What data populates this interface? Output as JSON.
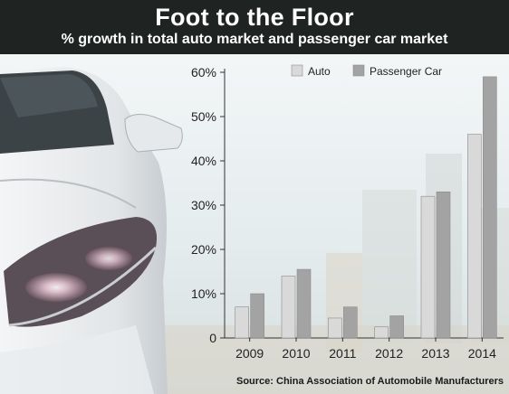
{
  "header": {
    "title": "Foot to the Floor",
    "subtitle": "% growth in total auto market and passenger car market"
  },
  "source": "Source: China Association of Automobile Manufacturers",
  "colors": {
    "auto": "#d9d9d9",
    "passenger_car": "#a3a3a3",
    "header_bg": "#1f2422"
  },
  "chart_data": {
    "type": "bar",
    "categories": [
      "2009",
      "2010",
      "2011",
      "2012",
      "2013",
      "2014"
    ],
    "series": [
      {
        "name": "Auto",
        "values": [
          7,
          14,
          4.5,
          2.5,
          32,
          46
        ]
      },
      {
        "name": "Passenger Car",
        "values": [
          10,
          15.5,
          7,
          5,
          33,
          59
        ]
      }
    ],
    "y_ticks": [
      "0",
      "10%",
      "20%",
      "30%",
      "40%",
      "50%",
      "60%"
    ],
    "ylim": [
      0,
      60
    ],
    "grid": false,
    "legend": "top"
  }
}
